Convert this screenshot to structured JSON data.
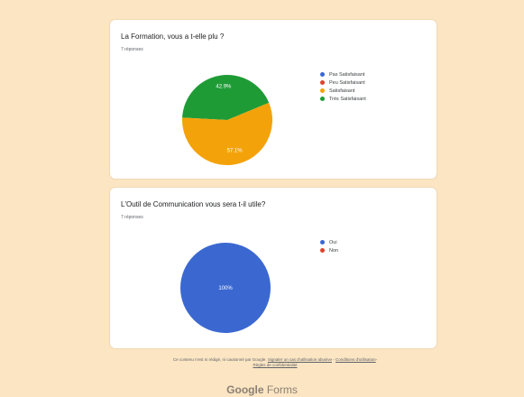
{
  "questions": [
    {
      "title": "La Formation, vous a t-elle plu ?",
      "responses": "7 réponses",
      "legend": [
        {
          "label": "Pas Satisfaisant",
          "color": "#3b68d0"
        },
        {
          "label": "Peu Satisfaisant",
          "color": "#d9442c"
        },
        {
          "label": "Satisfaisant",
          "color": "#f4a20a"
        },
        {
          "label": "Très Satisfaisant",
          "color": "#1f9b36"
        }
      ]
    },
    {
      "title": "L'Outil de Communication vous sera t-il utile?",
      "responses": "7 réponses",
      "legend": [
        {
          "label": "Oui",
          "color": "#3b68d0"
        },
        {
          "label": "Non",
          "color": "#d9442c"
        }
      ]
    }
  ],
  "chart_data": [
    {
      "type": "pie",
      "categories": [
        "Pas Satisfaisant",
        "Peu Satisfaisant",
        "Satisfaisant",
        "Très Satisfaisant"
      ],
      "values": [
        0,
        0,
        57.1,
        42.9
      ],
      "slice_labels": [
        "",
        "",
        "57.1%",
        "42.9%"
      ],
      "colors": [
        "#3b68d0",
        "#d9442c",
        "#f4a20a",
        "#1f9b36"
      ]
    },
    {
      "type": "pie",
      "categories": [
        "Oui",
        "Non"
      ],
      "values": [
        100,
        0
      ],
      "slice_labels": [
        "100%",
        ""
      ],
      "colors": [
        "#3b68d0",
        "#d9442c"
      ]
    }
  ],
  "footer": {
    "text": "Ce contenu n'est ni rédigé, ni cautionné par Google.",
    "report_link": "Signaler un cas d'utilisation abusive",
    "separator": "-",
    "terms_link": "Conditions d'utilisation",
    "privacy_link": "Règles de confidentialité"
  },
  "brand": {
    "google": "Google",
    "forms": "Forms"
  }
}
